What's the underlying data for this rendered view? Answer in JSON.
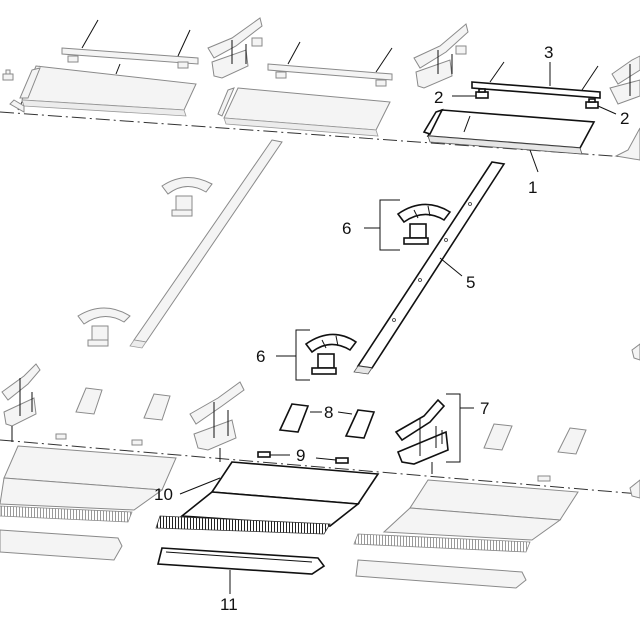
{
  "callouts": {
    "c1": "1",
    "c2a": "2",
    "c2b": "2",
    "c3": "3",
    "c5": "5",
    "c6a": "6",
    "c6b": "6",
    "c7": "7",
    "c8": "8",
    "c9": "9",
    "c10": "10",
    "c11": "11"
  },
  "colors": {
    "line": "#222222",
    "highlight": "#111111",
    "background_part": "#8a8a8a"
  }
}
